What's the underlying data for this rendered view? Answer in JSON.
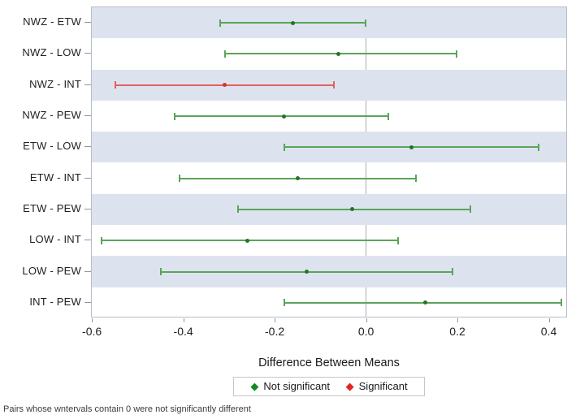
{
  "chart_data": {
    "type": "scatter",
    "subtype": "pairwise-mean-difference-intervals",
    "title": "",
    "xlabel": "Difference Between Means",
    "xlim": [
      -0.602,
      0.44
    ],
    "x_ticks": [
      -0.6,
      -0.4,
      -0.2,
      0.0,
      0.2,
      0.4
    ],
    "x_tick_labels": [
      "-0.6",
      "-0.4",
      "-0.2",
      "0.0",
      "0.2",
      "0.4"
    ],
    "reference_line_x": 0,
    "grid": false,
    "alternating_row_bands": "rows 1,3,5,7,9 shaded",
    "categories": [
      "NWZ - ETW",
      "NWZ - LOW",
      "NWZ - INT",
      "NWZ - PEW",
      "ETW - LOW",
      "ETW - INT",
      "ETW - PEW",
      "LOW - INT",
      "LOW - PEW",
      "INT - PEW"
    ],
    "points": [
      {
        "pair": "NWZ - ETW",
        "diff": -0.16,
        "lower": -0.32,
        "upper": 0.0,
        "significant": false
      },
      {
        "pair": "NWZ - LOW",
        "diff": -0.06,
        "lower": -0.31,
        "upper": 0.2,
        "significant": false
      },
      {
        "pair": "NWZ - INT",
        "diff": -0.31,
        "lower": -0.55,
        "upper": -0.07,
        "significant": true
      },
      {
        "pair": "NWZ - PEW",
        "diff": -0.18,
        "lower": -0.42,
        "upper": 0.05,
        "significant": false
      },
      {
        "pair": "ETW - LOW",
        "diff": 0.1,
        "lower": -0.18,
        "upper": 0.38,
        "significant": false
      },
      {
        "pair": "ETW - INT",
        "diff": -0.15,
        "lower": -0.41,
        "upper": 0.11,
        "significant": false
      },
      {
        "pair": "ETW - PEW",
        "diff": -0.03,
        "lower": -0.28,
        "upper": 0.23,
        "significant": false
      },
      {
        "pair": "LOW - INT",
        "diff": -0.26,
        "lower": -0.58,
        "upper": 0.07,
        "significant": false
      },
      {
        "pair": "LOW - PEW",
        "diff": -0.13,
        "lower": -0.45,
        "upper": 0.19,
        "significant": false
      },
      {
        "pair": "INT - PEW",
        "diff": 0.13,
        "lower": -0.18,
        "upper": 0.43,
        "significant": false
      }
    ],
    "legend": {
      "position": "bottom-center",
      "items": [
        {
          "label": "Not significant",
          "color": "#128a26"
        },
        {
          "label": "Significant",
          "color": "#e02424"
        }
      ]
    },
    "footnote": "Pairs whose wntervals contain 0 were not significantly different"
  },
  "glyphs": {
    "diamond": "◆"
  },
  "colors": {
    "band": "#dde3ee",
    "frame": "#b6bdc9",
    "zero_line": "#a8adb5",
    "green_line": "#5aa55a",
    "green_marker": "#257425",
    "red_line": "#e06060",
    "red_marker": "#d03434"
  }
}
